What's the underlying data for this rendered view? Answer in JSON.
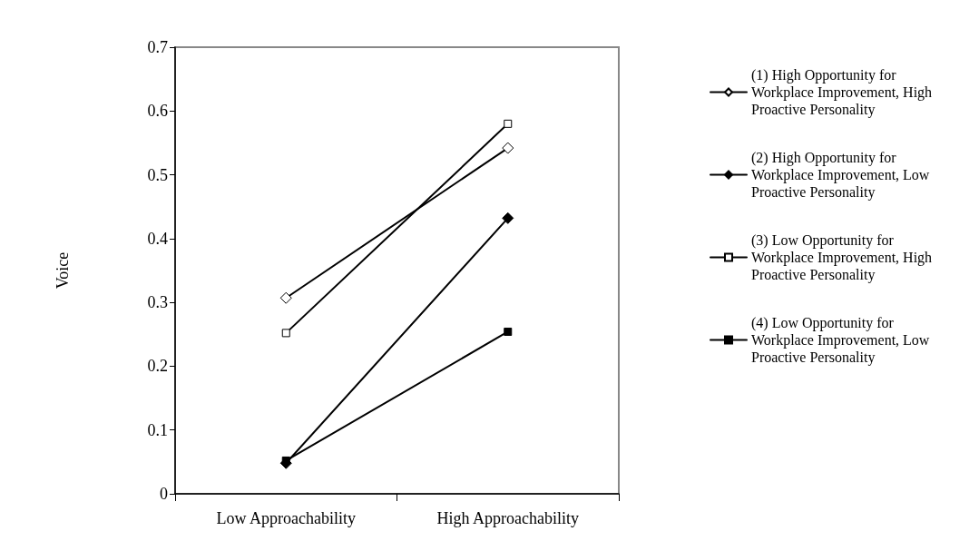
{
  "chart_data": {
    "type": "line",
    "ylabel": "Voice",
    "categories": [
      "Low Approachability",
      "High Approachability"
    ],
    "series": [
      {
        "name": "(1) High Opportunity for Workplace Improvement, High Proactive Personality",
        "color": "#000000",
        "marker": "diamond",
        "values": [
          0.307,
          0.542
        ]
      },
      {
        "name": "(2) High Opportunity for Workplace Improvement, Low Proactive Personality",
        "color": "#000000",
        "marker": "diamond",
        "values": [
          0.048,
          0.432
        ]
      },
      {
        "name": "(3) Low Opportunity for Workplace Improvement, High Proactive Personality",
        "color": "#000000",
        "marker": "square",
        "values": [
          0.252,
          0.58
        ]
      },
      {
        "name": "(4) Low Opportunity for Workplace Improvement, Low Proactive Personality",
        "color": "#000000",
        "marker": "square",
        "values": [
          0.052,
          0.254
        ]
      }
    ],
    "ylim": [
      0,
      0.7
    ],
    "yticks": [
      0,
      0.1,
      0.2,
      0.3,
      0.4,
      0.5,
      0.6,
      0.7
    ],
    "grid": false,
    "legend": "right",
    "line_style": "solid"
  }
}
